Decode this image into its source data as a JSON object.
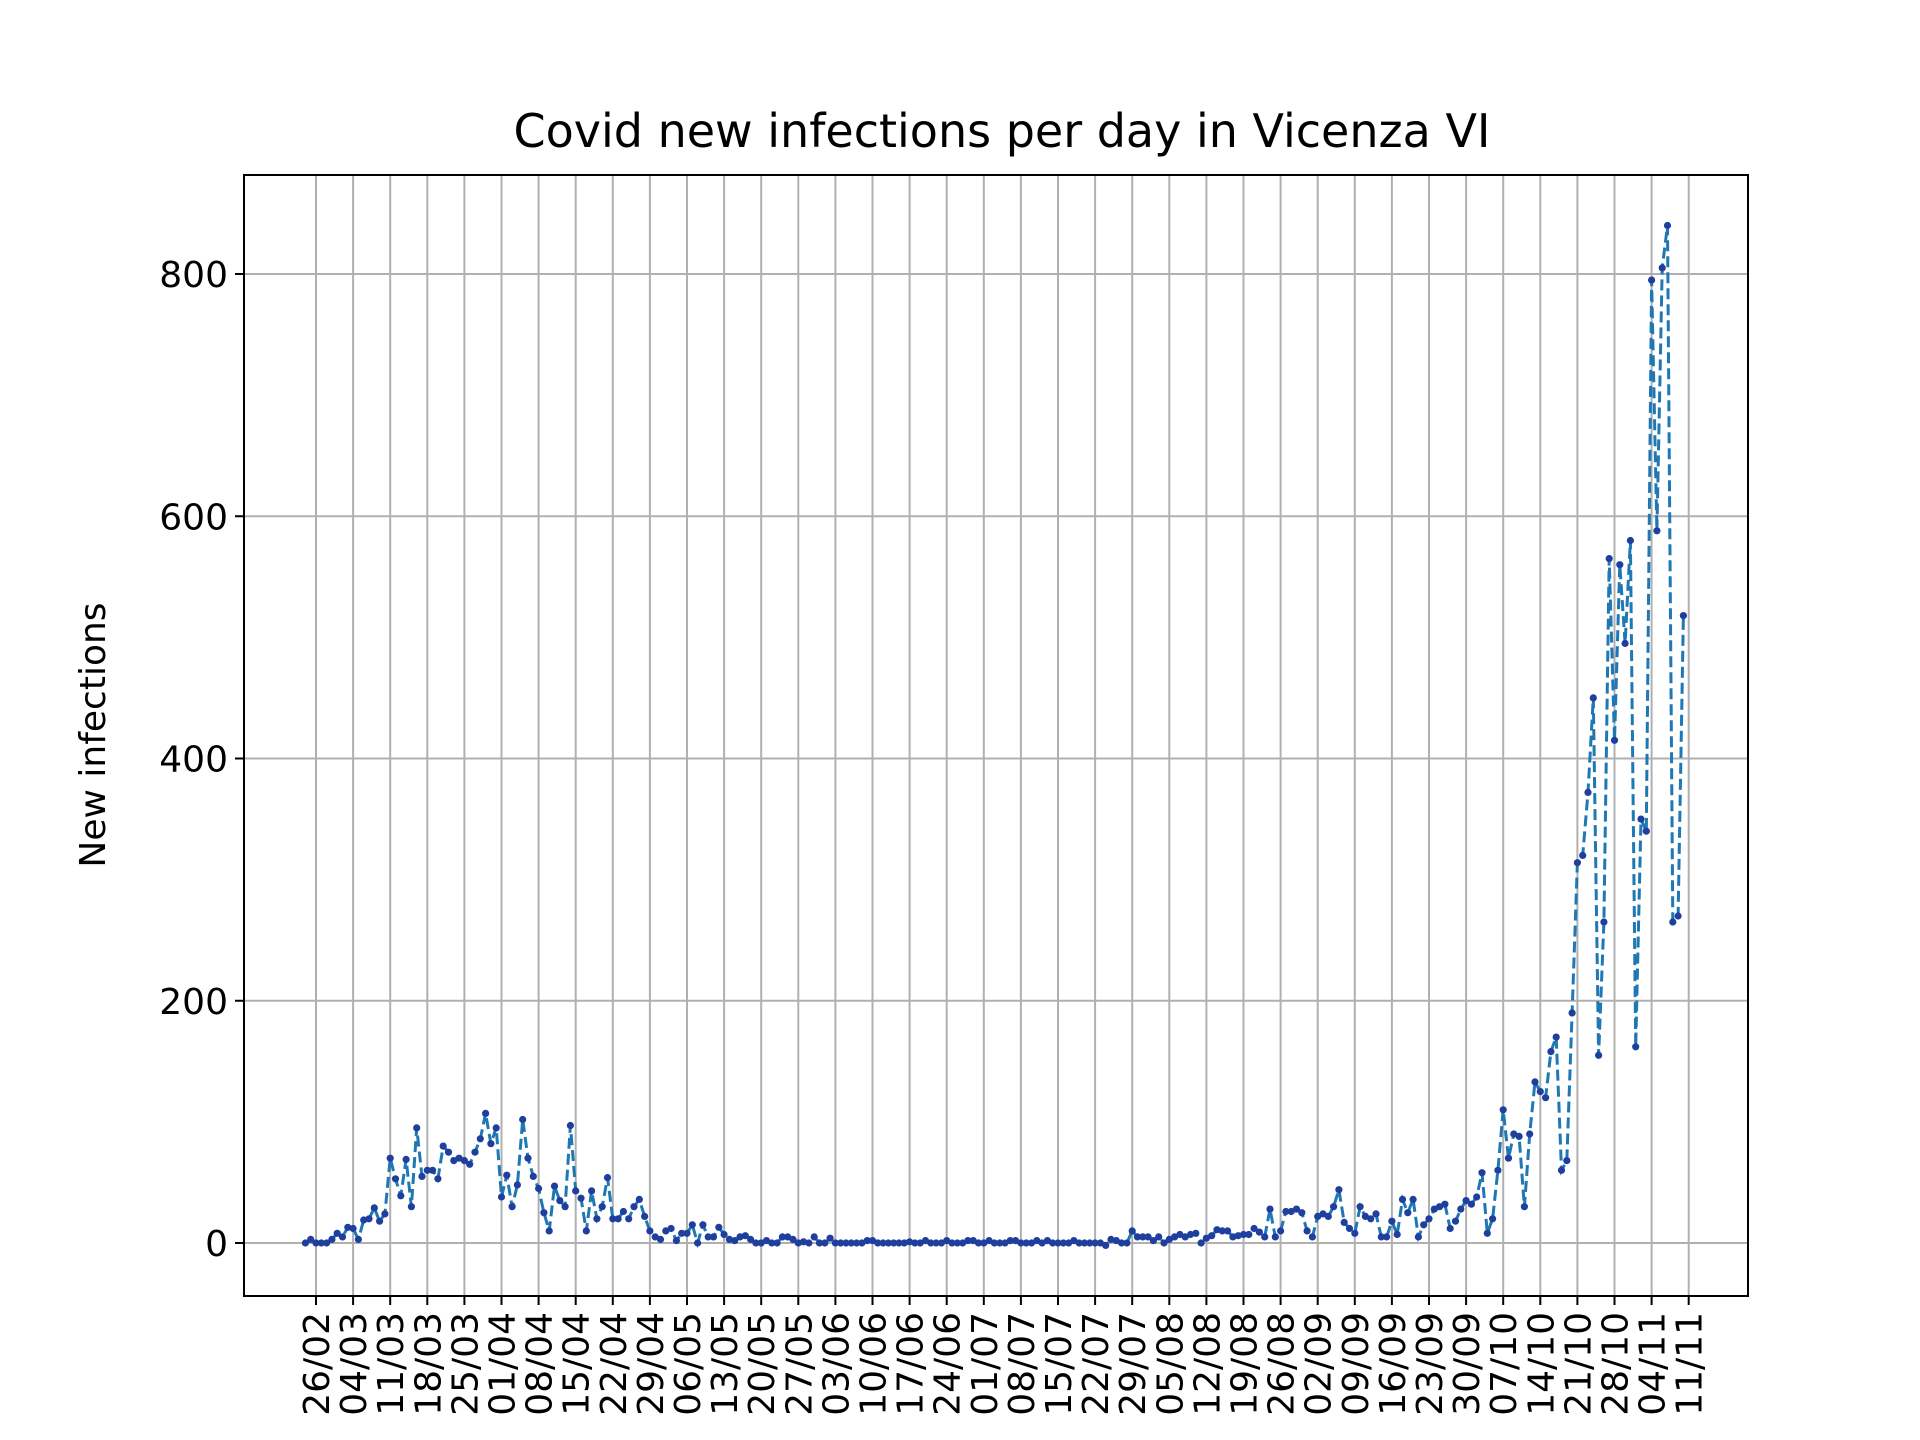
{
  "chart_data": {
    "type": "line",
    "title": "Covid new infections per day in Vicenza VI",
    "xlabel": "",
    "ylabel": "New infections",
    "ylim": [
      -43,
      883
    ],
    "yticks": [
      0,
      200,
      400,
      600,
      800
    ],
    "xtick_labels": [
      "26/02",
      "04/03",
      "11/03",
      "18/03",
      "25/03",
      "01/04",
      "08/04",
      "15/04",
      "22/04",
      "29/04",
      "06/05",
      "13/05",
      "20/05",
      "27/05",
      "03/06",
      "10/06",
      "17/06",
      "24/06",
      "01/07",
      "08/07",
      "15/07",
      "22/07",
      "29/07",
      "05/08",
      "12/08",
      "19/08",
      "26/08",
      "02/09",
      "09/09",
      "16/09",
      "23/09",
      "30/09",
      "07/10",
      "14/10",
      "21/10",
      "28/10",
      "04/11",
      "11/11"
    ],
    "grid": true,
    "line_style": "dashed",
    "marker": "dot",
    "colors": {
      "line": "#1f77b4",
      "marker": "#1f3f9f",
      "grid": "#b0b0b0"
    },
    "series": [
      {
        "start": "24/02",
        "values": [
          0,
          3,
          0,
          0,
          0,
          3,
          8,
          5,
          13,
          12,
          3,
          19,
          20,
          29,
          18,
          24,
          70,
          53,
          39,
          69,
          30,
          95,
          55,
          60,
          60,
          53,
          80,
          75,
          68,
          70,
          68,
          65,
          75,
          86,
          107,
          82,
          95,
          38,
          56,
          30,
          48,
          102,
          70,
          55,
          45,
          25,
          10,
          47,
          35,
          30,
          97,
          43,
          37,
          10,
          43,
          20,
          30,
          54,
          20,
          20,
          26,
          20,
          30,
          36,
          22,
          10,
          5,
          3,
          10,
          12,
          2,
          8,
          8,
          15,
          0,
          15,
          5,
          5,
          13,
          7,
          3,
          2,
          5,
          6,
          3,
          0,
          0,
          2,
          0,
          0,
          5,
          5,
          3,
          0,
          1,
          0,
          5,
          0,
          0,
          4,
          0,
          0,
          0,
          0,
          0,
          0,
          2,
          2,
          0,
          0,
          0,
          0,
          0,
          0,
          1,
          0,
          0,
          2,
          0,
          0,
          0,
          2,
          0,
          0,
          0,
          2,
          2,
          0,
          0,
          2,
          0,
          0,
          0,
          2,
          2,
          0,
          0,
          0,
          2,
          0,
          2,
          0,
          0,
          0,
          0,
          2,
          0,
          0,
          0,
          0,
          0,
          -2,
          3,
          2,
          0,
          0,
          10,
          5,
          5,
          5,
          2,
          5,
          0,
          3,
          5,
          7,
          5,
          7,
          8,
          0,
          4,
          6,
          11,
          10,
          10,
          5,
          6,
          7,
          7,
          12,
          9,
          5,
          28,
          5,
          10,
          26,
          26,
          28,
          25,
          10,
          5,
          22,
          24,
          22,
          30,
          44,
          17,
          12,
          8,
          30,
          22,
          20,
          24,
          5,
          5,
          18,
          7,
          36,
          25,
          36,
          5,
          15,
          20,
          28,
          30,
          32,
          12,
          18,
          28,
          35,
          32,
          38,
          58,
          8,
          20,
          60,
          110,
          70,
          90,
          88,
          30,
          90,
          133,
          125,
          120,
          158,
          170,
          60,
          68,
          190,
          314,
          320,
          372,
          450,
          155,
          265,
          565,
          415,
          560,
          495,
          580,
          162,
          350,
          340,
          795,
          588,
          805,
          840,
          265,
          270,
          518
        ]
      }
    ]
  }
}
